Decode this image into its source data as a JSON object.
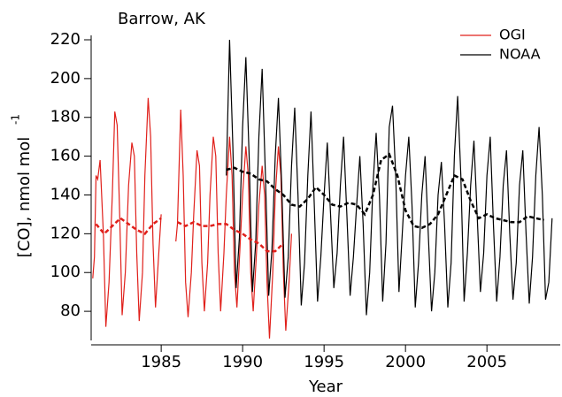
{
  "chart_data": {
    "type": "line",
    "annotation": "Barrow, AK",
    "xlabel": "Year",
    "ylabel": "[CO], nmol mol",
    "ylabel_sup": "-1",
    "xlim": [
      1980.7,
      2009.5
    ],
    "xticks": [
      1985,
      1990,
      1995,
      2000,
      2005
    ],
    "ylim": [
      65,
      220
    ],
    "yticks": [
      80,
      100,
      120,
      140,
      160,
      180,
      200,
      220
    ],
    "legend": "top-right",
    "series": [
      {
        "name": "OGI",
        "color": "#e0201b",
        "x": [
          1980.8,
          1980.9,
          1981.0,
          1981.1,
          1981.25,
          1981.45,
          1981.6,
          1981.8,
          1982.0,
          1982.15,
          1982.3,
          1982.45,
          1982.6,
          1982.8,
          1983.0,
          1983.2,
          1983.35,
          1983.5,
          1983.65,
          1983.85,
          1984.0,
          1984.2,
          1984.35,
          1984.5,
          1984.65,
          1984.85,
          1985.0,
          null,
          1985.9,
          1986.0,
          1986.2,
          1986.35,
          1986.5,
          1986.65,
          1986.85,
          1987.0,
          1987.2,
          1987.35,
          1987.5,
          1987.65,
          1987.85,
          1988.0,
          1988.2,
          1988.35,
          1988.5,
          1988.65,
          1988.85,
          1989.0,
          1989.2,
          1989.35,
          1989.5,
          1989.65,
          1989.85,
          1990.0,
          1990.2,
          1990.35,
          1990.5,
          1990.65,
          1990.85,
          1991.0,
          1991.2,
          1991.35,
          1991.5,
          1991.65,
          1991.85,
          1992.0,
          1992.2,
          1992.35,
          1992.5,
          1992.65,
          1992.85,
          1993.0
        ],
        "values": [
          97,
          108,
          150,
          148,
          158,
          120,
          72,
          95,
          140,
          183,
          176,
          130,
          78,
          100,
          145,
          167,
          160,
          110,
          75,
          100,
          150,
          190,
          170,
          115,
          82,
          110,
          130,
          null,
          116,
          125,
          184,
          150,
          95,
          77,
          100,
          130,
          163,
          155,
          105,
          80,
          105,
          140,
          170,
          160,
          110,
          80,
          110,
          140,
          170,
          150,
          100,
          82,
          115,
          140,
          165,
          150,
          100,
          80,
          110,
          135,
          155,
          140,
          95,
          66,
          100,
          140,
          165,
          150,
          100,
          70,
          95,
          120
        ]
      },
      {
        "name": "NOAA",
        "color": "#000000",
        "x": [
          1989.0,
          1989.2,
          1989.4,
          1989.6,
          1989.8,
          1990.0,
          1990.2,
          1990.4,
          1990.6,
          1990.8,
          1991.0,
          1991.2,
          1991.4,
          1991.6,
          1991.8,
          1992.0,
          1992.2,
          1992.4,
          1992.6,
          1992.8,
          1993.0,
          1993.2,
          1993.4,
          1993.6,
          1993.8,
          1994.0,
          1994.2,
          1994.4,
          1994.6,
          1994.8,
          1995.0,
          1995.2,
          1995.4,
          1995.6,
          1995.8,
          1996.0,
          1996.2,
          1996.4,
          1996.6,
          1996.8,
          1997.0,
          1997.2,
          1997.4,
          1997.6,
          1997.8,
          1998.0,
          1998.2,
          1998.4,
          1998.6,
          1998.8,
          1999.0,
          1999.2,
          1999.4,
          1999.6,
          1999.8,
          2000.0,
          2000.2,
          2000.4,
          2000.6,
          2000.8,
          2001.0,
          2001.2,
          2001.4,
          2001.6,
          2001.8,
          2002.0,
          2002.2,
          2002.4,
          2002.6,
          2002.8,
          2003.0,
          2003.2,
          2003.4,
          2003.6,
          2003.8,
          2004.0,
          2004.2,
          2004.4,
          2004.6,
          2004.8,
          2005.0,
          2005.2,
          2005.4,
          2005.6,
          2005.8,
          2006.0,
          2006.2,
          2006.4,
          2006.6,
          2006.8,
          2007.0,
          2007.2,
          2007.4,
          2007.6,
          2007.8,
          2008.0,
          2008.2,
          2008.4,
          2008.6,
          2008.8,
          2009.0
        ],
        "values": [
          150,
          220,
          165,
          92,
          118,
          175,
          211,
          160,
          90,
          115,
          170,
          205,
          150,
          88,
          112,
          160,
          190,
          145,
          87,
          108,
          155,
          185,
          140,
          83,
          105,
          150,
          183,
          135,
          85,
          108,
          140,
          167,
          130,
          92,
          110,
          145,
          170,
          130,
          88,
          108,
          135,
          160,
          125,
          78,
          100,
          145,
          172,
          140,
          85,
          115,
          175,
          186,
          150,
          90,
          120,
          150,
          170,
          135,
          82,
          105,
          140,
          160,
          120,
          80,
          100,
          140,
          157,
          125,
          82,
          105,
          160,
          191,
          150,
          85,
          110,
          145,
          168,
          130,
          90,
          110,
          150,
          170,
          125,
          85,
          108,
          145,
          163,
          120,
          86,
          105,
          145,
          163,
          120,
          84,
          108,
          150,
          175,
          140,
          86,
          95,
          128
        ]
      },
      {
        "color": "#e0201b",
        "dashed": true,
        "x": [
          1981.0,
          1981.5,
          1982.0,
          1982.5,
          1983.0,
          1983.5,
          1984.0,
          1984.5,
          1985.0,
          null,
          1986.0,
          1986.5,
          1987.0,
          1987.5,
          1988.0,
          1988.5,
          1989.0,
          1989.5,
          1990.0,
          1990.5,
          1991.0,
          1991.5,
          1992.0,
          1992.5
        ],
        "values": [
          125,
          120,
          124,
          128,
          125,
          122,
          120,
          125,
          128,
          null,
          126,
          124,
          126,
          124,
          124,
          125,
          125,
          122,
          120,
          117,
          115,
          111,
          111,
          115
        ]
      },
      {
        "color": "#000000",
        "dashed": true,
        "x": [
          1989.0,
          1989.5,
          1990.0,
          1990.5,
          1991.0,
          1991.5,
          1992.0,
          1992.5,
          1993.0,
          1993.5,
          1994.0,
          1994.5,
          1995.0,
          1995.5,
          1996.0,
          1996.5,
          1997.0,
          1997.5,
          1998.0,
          1998.5,
          1999.0,
          1999.5,
          2000.0,
          2000.5,
          2001.0,
          2001.5,
          2002.0,
          2002.5,
          2003.0,
          2003.5,
          2004.0,
          2004.5,
          2005.0,
          2005.5,
          2006.0,
          2006.5,
          2007.0,
          2007.5,
          2008.0,
          2008.5
        ],
        "values": [
          153,
          154,
          152,
          151,
          148,
          147,
          143,
          140,
          135,
          134,
          138,
          144,
          140,
          135,
          134,
          136,
          135,
          130,
          140,
          158,
          161,
          150,
          132,
          124,
          123,
          125,
          130,
          140,
          150,
          148,
          137,
          128,
          130,
          128,
          127,
          126,
          126,
          129,
          128,
          127
        ]
      }
    ]
  }
}
